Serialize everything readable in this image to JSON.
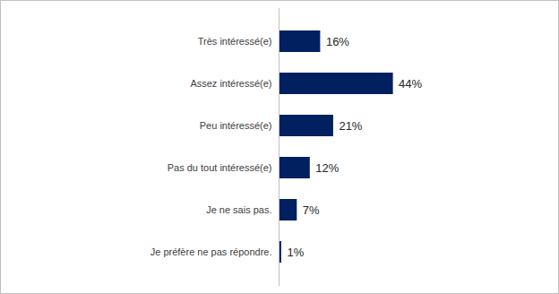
{
  "chart_data": {
    "type": "bar",
    "orientation": "horizontal",
    "categories": [
      "Très intéressé(e)",
      "Assez intéressé(e)",
      "Peu intéressé(e)",
      "Pas du tout intéressé(e)",
      "Je ne sais pas.",
      "Je préfère ne pas répondre."
    ],
    "values": [
      16,
      44,
      21,
      12,
      7,
      1
    ],
    "value_labels": [
      "16%",
      "44%",
      "21%",
      "12%",
      "7%",
      "1%"
    ],
    "color": "#002060",
    "xlim": [
      0,
      100
    ],
    "data_labels": true,
    "tick_labels": "y",
    "grid": false
  }
}
